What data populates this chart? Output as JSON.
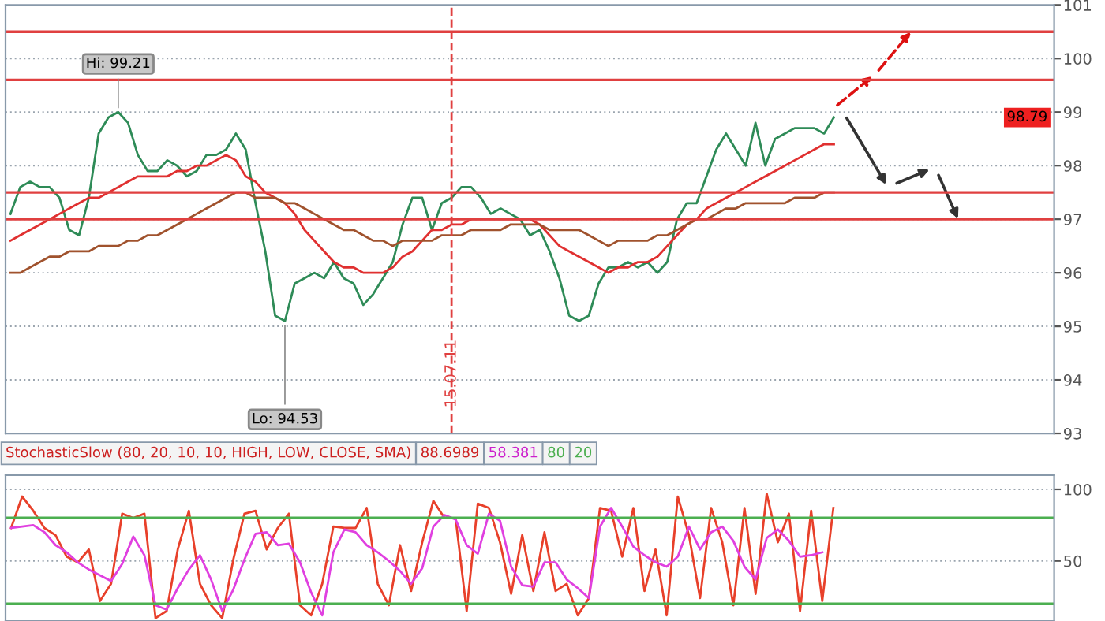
{
  "chart_data": [
    {
      "type": "line",
      "ylim": [
        93,
        101
      ],
      "yticks": [
        93,
        94,
        95,
        96,
        97,
        98,
        99,
        100,
        101
      ],
      "categories": [
        null,
        null,
        null,
        null,
        null,
        null,
        null,
        null,
        null,
        null,
        null,
        null,
        null,
        null,
        null,
        null,
        null,
        null,
        null,
        null,
        null,
        null,
        null,
        null,
        null,
        null,
        null,
        null,
        null,
        null,
        null,
        null,
        null,
        null,
        null,
        null,
        null,
        null,
        null,
        null,
        null,
        null,
        null,
        null,
        null,
        "15.07.11",
        null,
        null,
        null,
        null,
        null,
        null,
        null,
        null,
        null,
        null,
        null,
        null,
        null,
        null,
        null,
        null,
        null,
        null,
        null,
        null,
        null,
        null,
        null,
        null,
        null,
        null,
        null,
        null,
        null,
        null,
        null,
        null,
        null,
        null,
        null,
        null,
        null,
        null,
        null
      ],
      "grid": "y",
      "line_style": "solid",
      "marker": "none",
      "series": [
        {
          "color": "#2e8b57",
          "values": [
            97.1,
            97.6,
            97.7,
            97.6,
            97.6,
            97.4,
            96.8,
            96.7,
            97.4,
            98.6,
            98.9,
            99.0,
            98.8,
            98.2,
            97.9,
            97.9,
            98.1,
            98.0,
            97.8,
            97.9,
            98.2,
            98.2,
            98.3,
            98.6,
            98.3,
            97.3,
            96.4,
            95.2,
            95.1,
            95.8,
            95.9,
            96.0,
            95.9,
            96.2,
            95.9,
            95.8,
            95.4,
            95.6,
            95.9,
            96.2,
            96.9,
            97.4,
            97.4,
            96.8,
            97.3,
            97.4,
            97.6,
            97.6,
            97.4,
            97.1,
            97.2,
            97.1,
            97.0,
            96.7,
            96.8,
            96.4,
            95.9,
            95.2,
            95.1,
            95.2,
            95.8,
            96.1,
            96.1,
            96.2,
            96.1,
            96.2,
            96.0,
            96.2,
            97.0,
            97.3,
            97.3,
            97.8,
            98.3,
            98.6,
            98.3,
            98.0,
            98.8,
            98.0,
            98.5,
            98.6,
            98.7,
            98.7,
            98.7,
            98.6,
            98.9
          ]
        },
        {
          "color": "#e03030",
          "values": [
            96.6,
            96.7,
            96.8,
            96.9,
            97.0,
            97.1,
            97.2,
            97.3,
            97.4,
            97.4,
            97.5,
            97.6,
            97.7,
            97.8,
            97.8,
            97.8,
            97.8,
            97.9,
            97.9,
            98.0,
            98.0,
            98.1,
            98.2,
            98.1,
            97.8,
            97.7,
            97.5,
            97.4,
            97.3,
            97.1,
            96.8,
            96.6,
            96.4,
            96.2,
            96.1,
            96.1,
            96.0,
            96.0,
            96.0,
            96.1,
            96.3,
            96.4,
            96.6,
            96.8,
            96.8,
            96.9,
            96.9,
            97.0,
            97.0,
            97.0,
            97.0,
            97.0,
            97.0,
            97.0,
            96.9,
            96.7,
            96.5,
            96.4,
            96.3,
            96.2,
            96.1,
            96.0,
            96.1,
            96.1,
            96.2,
            96.2,
            96.3,
            96.5,
            96.7,
            96.9,
            97.0,
            97.2,
            97.3,
            97.4,
            97.5,
            97.6,
            97.7,
            97.8,
            97.9,
            98.0,
            98.1,
            98.2,
            98.3,
            98.4,
            98.4
          ]
        },
        {
          "color": "#a0522d",
          "values": [
            96.0,
            96.0,
            96.1,
            96.2,
            96.3,
            96.3,
            96.4,
            96.4,
            96.4,
            96.5,
            96.5,
            96.5,
            96.6,
            96.6,
            96.7,
            96.7,
            96.8,
            96.9,
            97.0,
            97.1,
            97.2,
            97.3,
            97.4,
            97.5,
            97.5,
            97.4,
            97.4,
            97.4,
            97.3,
            97.3,
            97.2,
            97.1,
            97.0,
            96.9,
            96.8,
            96.8,
            96.7,
            96.6,
            96.6,
            96.5,
            96.6,
            96.6,
            96.6,
            96.6,
            96.7,
            96.7,
            96.7,
            96.8,
            96.8,
            96.8,
            96.8,
            96.9,
            96.9,
            96.9,
            96.9,
            96.8,
            96.8,
            96.8,
            96.8,
            96.7,
            96.6,
            96.5,
            96.6,
            96.6,
            96.6,
            96.6,
            96.7,
            96.7,
            96.8,
            96.9,
            97.0,
            97.0,
            97.1,
            97.2,
            97.2,
            97.3,
            97.3,
            97.3,
            97.3,
            97.3,
            97.4,
            97.4,
            97.4,
            97.5,
            97.5
          ]
        }
      ],
      "ref_lines": [
        {
          "axis": "y",
          "value": 100.5,
          "color": "#e04040"
        },
        {
          "axis": "y",
          "value": 99.6,
          "color": "#e04040"
        },
        {
          "axis": "y",
          "value": 97.5,
          "color": "#e04040"
        },
        {
          "axis": "y",
          "value": 97.0,
          "color": "#e04040"
        },
        {
          "axis": "x",
          "value": "15.07.11",
          "color": "#e04040",
          "line_style": "dashed"
        }
      ],
      "annotations": [
        "Hi: 99.21",
        "Lo: 94.53",
        "98.79"
      ]
    },
    {
      "type": "line",
      "title": "StochasticSlow (80, 20, 10, 10, HIGH, LOW, CLOSE, SMA)",
      "ylim": [
        8,
        110
      ],
      "yticks": [
        50,
        100
      ],
      "categories": [
        null,
        null,
        null,
        null,
        null,
        null,
        null,
        null,
        null,
        null,
        null,
        null,
        null,
        null,
        null,
        null,
        null,
        null,
        null,
        null,
        null,
        null,
        null,
        null,
        null,
        null,
        null,
        null,
        null,
        null,
        null,
        null,
        null,
        null,
        null,
        null,
        null,
        null,
        null,
        null,
        null,
        null,
        null,
        null,
        null,
        null,
        null,
        null,
        null,
        null,
        null,
        null,
        null,
        null,
        null,
        null,
        null,
        null,
        null,
        null,
        null,
        null,
        null,
        null,
        null,
        null,
        null,
        null,
        null,
        null,
        null,
        null,
        null,
        null,
        null
      ],
      "grid": "y",
      "line_style": "solid",
      "marker": "none",
      "series": [
        {
          "color": "#e8402a",
          "values": [
            73,
            95,
            85,
            73,
            68,
            53,
            49,
            58,
            22,
            34,
            83,
            80,
            83,
            10,
            15,
            58,
            85,
            34,
            19,
            10,
            51,
            83,
            85,
            58,
            73,
            83,
            19,
            12,
            34,
            74,
            73,
            73,
            87,
            34,
            19,
            61,
            29,
            63,
            92,
            80,
            80,
            15,
            90,
            87,
            63,
            27,
            68,
            29,
            70,
            29,
            34,
            12,
            24,
            87,
            85,
            53,
            87,
            29,
            58,
            12,
            95,
            68,
            24,
            87,
            63,
            19,
            87,
            27,
            97,
            63,
            83,
            15,
            85,
            22,
            87
          ]
        },
        {
          "color": "#e040e0",
          "values": [
            73,
            74,
            75,
            70,
            61,
            56,
            49,
            44,
            40,
            36,
            48,
            67,
            54,
            19,
            16,
            31,
            44,
            54,
            37,
            15,
            30,
            51,
            69,
            70,
            61,
            62,
            49,
            28,
            12,
            56,
            72,
            70,
            61,
            56,
            50,
            43,
            34,
            45,
            74,
            82,
            79,
            61,
            55,
            83,
            78,
            46,
            33,
            32,
            49,
            49,
            37,
            31,
            24,
            74,
            87,
            74,
            60,
            54,
            49,
            46,
            53,
            74,
            58,
            70,
            74,
            64,
            46,
            37,
            66,
            72,
            64,
            53,
            54,
            56,
            null
          ]
        }
      ],
      "ref_lines": [
        {
          "axis": "y",
          "value": 80,
          "label": "80",
          "color": "#4caf50"
        },
        {
          "axis": "y",
          "value": 20,
          "label": "20",
          "color": "#4caf50"
        }
      ],
      "annotations": [
        "88.6989",
        "58.381"
      ]
    }
  ]
}
